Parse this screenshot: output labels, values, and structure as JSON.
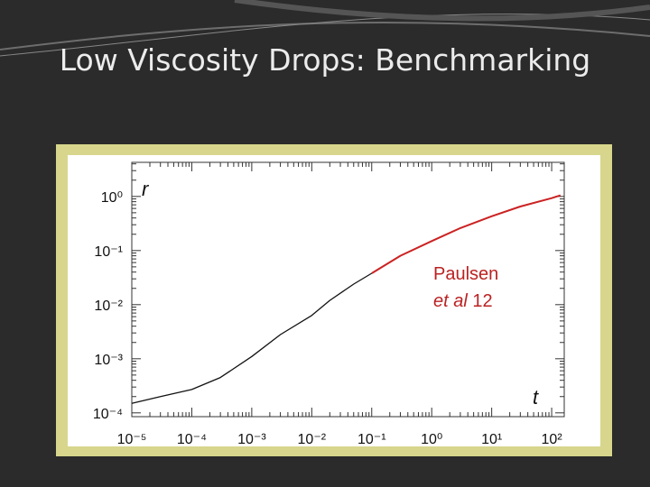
{
  "header": {
    "title": "Low Viscosity Drops: Benchmarking"
  },
  "chart_data": {
    "type": "line",
    "xlabel": "t",
    "ylabel": "r",
    "annotation": [
      "Paulsen",
      "et al",
      "12"
    ],
    "log_x": true,
    "log_y": true,
    "xlim": [
      1e-05,
      162
    ],
    "ylim": [
      8.51e-05,
      4.27
    ],
    "xticks": [
      {
        "value": 1e-05,
        "label": "10⁻⁵"
      },
      {
        "value": 0.0001,
        "label": "10⁻⁴"
      },
      {
        "value": 0.001,
        "label": "10⁻³"
      },
      {
        "value": 0.01,
        "label": "10⁻²"
      },
      {
        "value": 0.1,
        "label": "10⁻¹"
      },
      {
        "value": 1,
        "label": "10⁰"
      },
      {
        "value": 10,
        "label": "10¹"
      },
      {
        "value": 100,
        "label": "10²"
      }
    ],
    "yticks": [
      {
        "value": 0.0001,
        "label": "10⁻⁴"
      },
      {
        "value": 0.001,
        "label": "10⁻³"
      },
      {
        "value": 0.01,
        "label": "10⁻²"
      },
      {
        "value": 0.1,
        "label": "10⁻¹"
      },
      {
        "value": 1,
        "label": "10⁰"
      }
    ],
    "series": [
      {
        "color": "#111111",
        "x": [
          1e-05,
          3e-05,
          0.0001,
          0.0003,
          0.001,
          0.003,
          0.01,
          0.02,
          0.05,
          0.1
        ],
        "values": [
          0.00015,
          0.0002,
          0.00027,
          0.00045,
          0.0011,
          0.0028,
          0.0063,
          0.012,
          0.024,
          0.038
        ]
      },
      {
        "color": "#cc2222",
        "x": [
          0.1,
          0.3,
          1,
          3,
          10,
          30,
          100,
          140
        ],
        "values": [
          0.038,
          0.08,
          0.15,
          0.26,
          0.43,
          0.65,
          0.93,
          1.05
        ]
      }
    ]
  }
}
